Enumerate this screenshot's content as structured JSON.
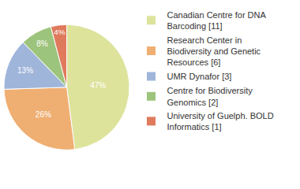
{
  "chart_data": {
    "type": "pie",
    "categories": [
      "Canadian Centre for DNA Barcoding [11]",
      "Research Center in Biodiversity and Genetic Resources [6]",
      "UMR Dynafor [3]",
      "Centre for Biodiversity Genomics [2]",
      "University of Guelph. BOLD Informatics [1]"
    ],
    "values": [
      47,
      26,
      13,
      8,
      4
    ],
    "value_labels": [
      "47%",
      "26%",
      "13%",
      "8%",
      "4%"
    ],
    "colors": [
      "#dde39b",
      "#efae72",
      "#9fb5da",
      "#9dc47c",
      "#df7a5c"
    ],
    "data_labels": true,
    "legend": "right"
  }
}
